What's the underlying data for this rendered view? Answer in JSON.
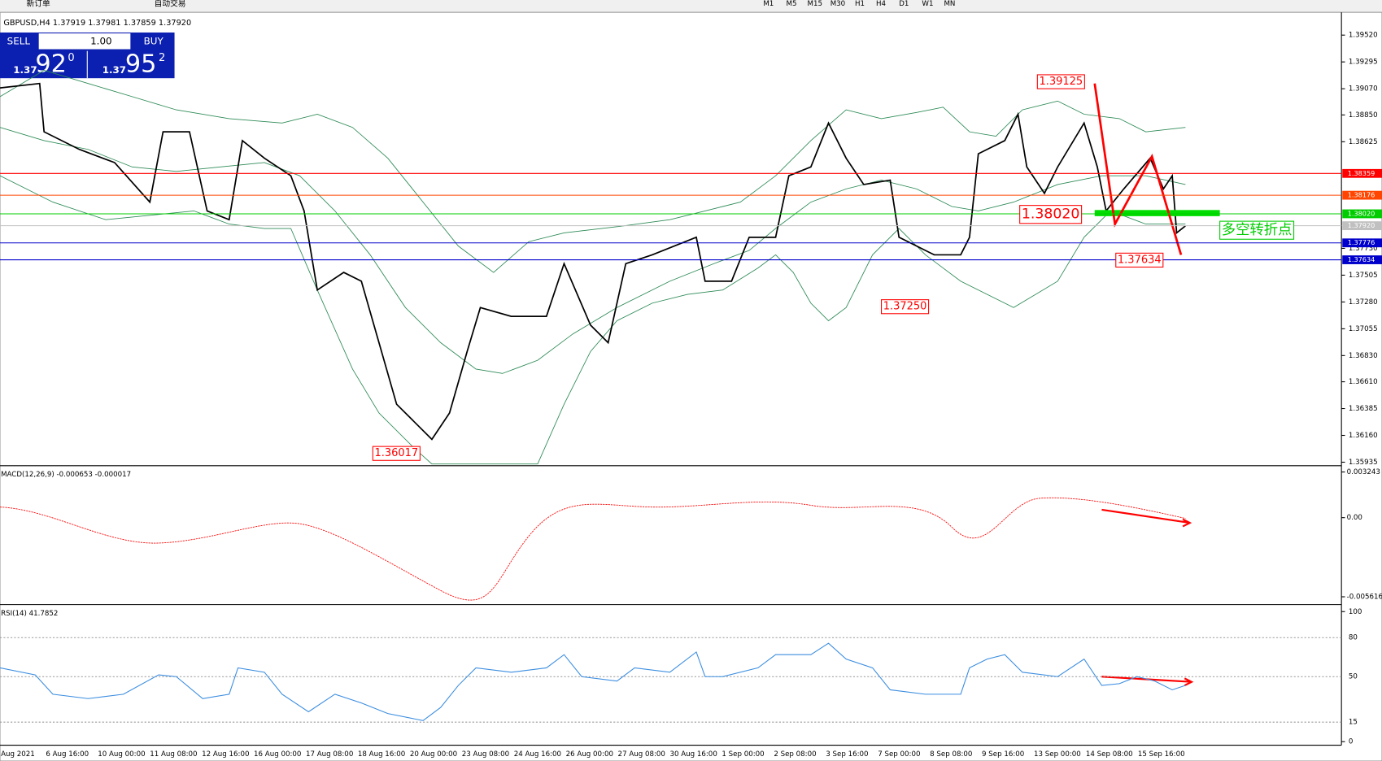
{
  "toolbar": {
    "new_order": "新订单",
    "auto_trading": "自动交易",
    "timeframes": [
      "M1",
      "M5",
      "M15",
      "M30",
      "H1",
      "H4",
      "D1",
      "W1",
      "MN"
    ]
  },
  "chart_window": {
    "title": "GBPUSD,H4  1.37919 1.37981 1.37859 1.37920",
    "trade_panel": {
      "sell": "SELL",
      "lot": "1.00",
      "buy": "BUY",
      "bid_prefix": "1.37",
      "bid_big": "92",
      "bid_sup": "0",
      "ask_prefix": "1.37",
      "ask_big": "95",
      "ask_sup": "2"
    }
  },
  "price_axis": {
    "ylim": [
      1.3592,
      1.39682
    ],
    "ticks": [
      {
        "value": 1.3952,
        "label": "1.39520"
      },
      {
        "value": 1.39295,
        "label": "1.39295"
      },
      {
        "value": 1.3907,
        "label": "1.39070"
      },
      {
        "value": 1.3885,
        "label": "1.38850"
      },
      {
        "value": 1.38625,
        "label": "1.38625"
      },
      {
        "value": 1.3773,
        "label": "1.37730"
      },
      {
        "value": 1.37505,
        "label": "1.37505"
      },
      {
        "value": 1.3728,
        "label": "1.37280"
      },
      {
        "value": 1.37055,
        "label": "1.37055"
      },
      {
        "value": 1.3683,
        "label": "1.36830"
      },
      {
        "value": 1.3661,
        "label": "1.36610"
      },
      {
        "value": 1.36385,
        "label": "1.36385"
      },
      {
        "value": 1.3616,
        "label": "1.36160"
      },
      {
        "value": 1.35935,
        "label": "1.35935"
      }
    ]
  },
  "levels": [
    {
      "value": 1.38359,
      "label": "1.38359",
      "color": "#ff0000"
    },
    {
      "value": 1.38176,
      "label": "1.38176",
      "color": "#ff4500"
    },
    {
      "value": 1.3802,
      "label": "1.38020",
      "color": "#00cc00"
    },
    {
      "value": 1.3792,
      "label": "1.37920",
      "color": "#c0c0c0"
    },
    {
      "value": 1.37776,
      "label": "1.37776",
      "color": "#0000cc"
    },
    {
      "value": 1.37634,
      "label": "1.37634",
      "color": "#0000cc"
    }
  ],
  "annotations": [
    "1.39125",
    "1.38020",
    "1.37634",
    "1.37250",
    "1.36017",
    "多空转折点"
  ],
  "macd": {
    "label": "MACD(12,26,9) -0.000653 -0.000017",
    "ylim": [
      -0.00617,
      0.00356
    ],
    "ticks": [
      0.003243,
      {
        "value": 0,
        "label": "0.00"
      },
      -0.005616
    ]
  },
  "rsi": {
    "label": "RSI(14) 41.7852",
    "ylim": [
      0,
      100
    ],
    "ticks": [
      100,
      80,
      50,
      15,
      0
    ]
  },
  "time_axis": [
    "Aug 2021",
    "6 Aug 16:00",
    "10 Aug 00:00",
    "11 Aug 08:00",
    "12 Aug 16:00",
    "16 Aug 00:00",
    "17 Aug 08:00",
    "18 Aug 16:00",
    "20 Aug 00:00",
    "23 Aug 08:00",
    "24 Aug 16:00",
    "26 Aug 00:00",
    "27 Aug 08:00",
    "30 Aug 16:00",
    "1 Sep 00:00",
    "2 Sep 08:00",
    "3 Sep 16:00",
    "7 Sep 00:00",
    "8 Sep 08:00",
    "9 Sep 16:00",
    "13 Sep 00:00",
    "14 Sep 08:00",
    "15 Sep 16:00"
  ]
}
